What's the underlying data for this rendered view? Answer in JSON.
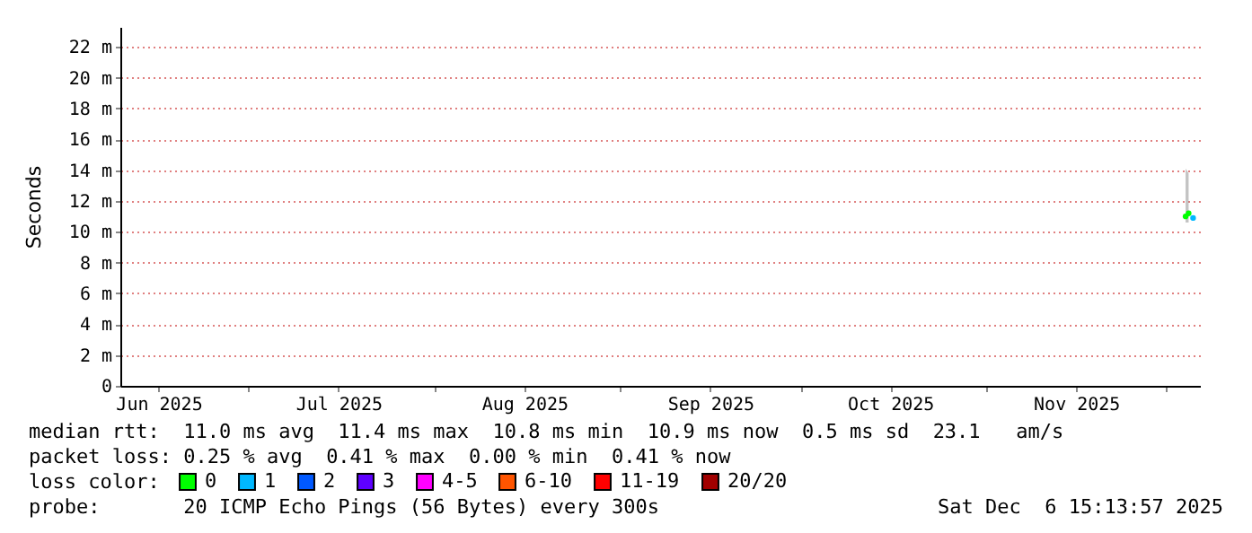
{
  "chart_data": {
    "type": "scatter",
    "ylabel": "Seconds",
    "xlim": [
      "2025-06-09T15:13",
      "2025-12-06T15:13"
    ],
    "xticks": [
      {
        "value": "2025-06-16",
        "label": "Jun 2025"
      },
      {
        "value": "2025-07-01",
        "label": null
      },
      {
        "value": "2025-07-16",
        "label": "Jul 2025"
      },
      {
        "value": "2025-08-01",
        "label": null
      },
      {
        "value": "2025-08-16",
        "label": "Aug 2025"
      },
      {
        "value": "2025-09-01",
        "label": null
      },
      {
        "value": "2025-09-16",
        "label": "Sep 2025"
      },
      {
        "value": "2025-10-01",
        "label": null
      },
      {
        "value": "2025-10-16",
        "label": "Oct 2025"
      },
      {
        "value": "2025-11-01",
        "label": null
      },
      {
        "value": "2025-11-16",
        "label": "Nov 2025"
      },
      {
        "value": "2025-12-01",
        "label": null
      }
    ],
    "ylim": [
      0,
      23.3
    ],
    "yticks": [
      0,
      {
        "value": 2,
        "label": "2 m"
      },
      {
        "value": 4,
        "label": "4 m"
      },
      {
        "value": 6,
        "label": "6 m"
      },
      {
        "value": 8,
        "label": "8 m"
      },
      {
        "value": 10,
        "label": "10 m"
      },
      {
        "value": 12,
        "label": "12 m"
      },
      {
        "value": 14,
        "label": "14 m"
      },
      {
        "value": 16,
        "label": "16 m"
      },
      {
        "value": 18,
        "label": "18 m"
      },
      {
        "value": 20,
        "label": "20 m"
      },
      {
        "value": 22,
        "label": "22 m"
      }
    ],
    "grid": true,
    "legend": "bottom left",
    "legend_title": "loss color:",
    "series": [
      {
        "name": "0",
        "color": "#00ff00",
        "x": [
          "2025-12-04T06:00",
          "2025-12-04T18:00"
        ],
        "values": [
          11.0,
          11.2
        ],
        "lower": [
          10.6,
          10.6
        ],
        "upper": [
          14.1,
          13.8
        ]
      },
      {
        "name": "1",
        "color": "#00b8ff",
        "x": [
          "2025-12-05T12:00"
        ],
        "values": [
          10.9
        ]
      },
      {
        "name": "2",
        "color": "#0059ff"
      },
      {
        "name": "3",
        "color": "#5e00ff"
      },
      {
        "name": "4-5",
        "color": "#ff00ff"
      },
      {
        "name": "6-10",
        "color": "#ff5500"
      },
      {
        "name": "11-19",
        "color": "#ff0000"
      },
      {
        "name": "20/20",
        "color": "#a10000"
      }
    ],
    "annotations": [
      "median rtt:  11.0 ms avg  11.4 ms max  10.8 ms min  10.9 ms now  0.5 ms sd  23.1   am/s",
      "packet loss: 0.25 % avg  0.41 % max  0.00 % min  0.41 % now",
      "probe:       20 ICMP Echo Pings (56 Bytes) every 300s",
      "Sat Dec  6 15:13:57 2025"
    ]
  }
}
